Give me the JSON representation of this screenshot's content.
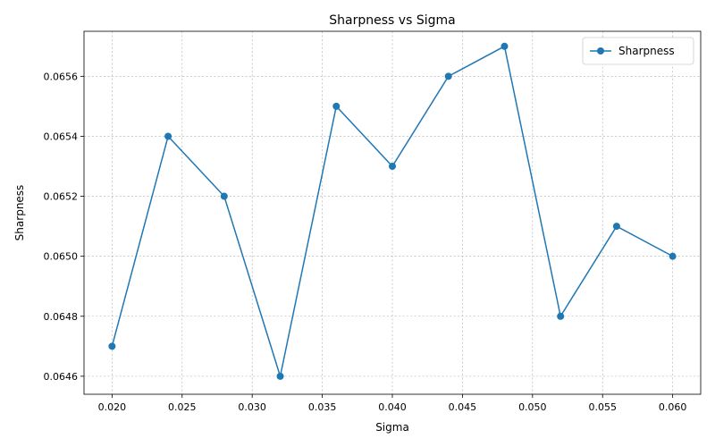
{
  "chart_data": {
    "type": "line",
    "title": "Sharpness vs Sigma",
    "xlabel": "Sigma",
    "ylabel": "Sharpness",
    "xlim": [
      0.018,
      0.062
    ],
    "ylim": [
      0.06454,
      0.06575
    ],
    "xticks": [
      "0.020",
      "0.025",
      "0.030",
      "0.035",
      "0.040",
      "0.045",
      "0.050",
      "0.055",
      "0.060"
    ],
    "yticks": [
      "0.0646",
      "0.0648",
      "0.0650",
      "0.0652",
      "0.0654",
      "0.0656"
    ],
    "grid": true,
    "legend_position": "top-right",
    "series": [
      {
        "name": "Sharpness",
        "color": "#1f77b4",
        "marker": "circle",
        "x": [
          0.02,
          0.024,
          0.028,
          0.032,
          0.036,
          0.04,
          0.044,
          0.048,
          0.052,
          0.056,
          0.06
        ],
        "y": [
          0.0647,
          0.0654,
          0.0652,
          0.0646,
          0.0655,
          0.0653,
          0.0656,
          0.0657,
          0.0648,
          0.0651,
          0.065
        ]
      }
    ]
  }
}
